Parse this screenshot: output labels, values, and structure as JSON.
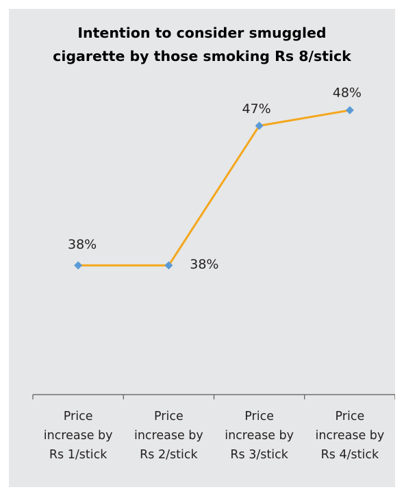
{
  "chart_data": {
    "type": "line",
    "title_lines": [
      "Intention to consider smuggled",
      "cigarette by those smoking Rs 8/stick"
    ],
    "categories": [
      [
        "Price",
        "increase by",
        "Rs 1/stick"
      ],
      [
        "Price",
        "increase by",
        "Rs 2/stick"
      ],
      [
        "Price",
        "increase by",
        "Rs 3/stick"
      ],
      [
        "Price",
        "increase by",
        "Rs 4/stick"
      ]
    ],
    "series": [
      {
        "values": [
          38,
          38,
          47,
          48
        ],
        "labels": [
          "38%",
          "38%",
          "47%",
          "48%"
        ]
      }
    ],
    "ylim": [
      29.67,
      51
    ],
    "grid": false,
    "legend": "none",
    "colors": {
      "line": "#f4a71e",
      "marker": "#5b9bd5",
      "axis": "#595959",
      "background": "#e6e7e8",
      "text": "#231f20"
    }
  }
}
